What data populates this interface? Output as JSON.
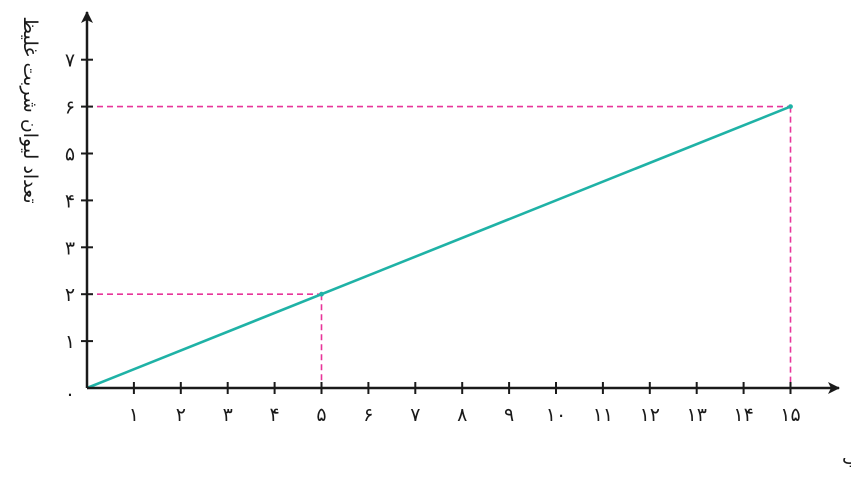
{
  "chart_data": {
    "type": "line",
    "xlabel": "تعداد لیوان آب",
    "ylabel": "تعداد لیوان شربت غلیظ",
    "xlim": [
      0,
      15
    ],
    "ylim": [
      0,
      7
    ],
    "x_ticks": [
      "۱",
      "۲",
      "۳",
      "۴",
      "۵",
      "۶",
      "۷",
      "۸",
      "۹",
      "۱۰",
      "۱۱",
      "۱۲",
      "۱۳",
      "۱۴",
      "۱۵"
    ],
    "y_ticks": [
      "۱",
      "۲",
      "۳",
      "۴",
      "۵",
      "۶",
      "۷"
    ],
    "origin_label": "۰",
    "grid": false,
    "series": [
      {
        "x": [
          0,
          15
        ],
        "y": [
          0,
          6
        ],
        "color": "#1fb2a6"
      }
    ],
    "guides": [
      {
        "x": 5,
        "y": 2
      },
      {
        "x": 15,
        "y": 6
      }
    ],
    "guide_color": "#e8359a",
    "axis_color": "#1a1a1a"
  }
}
